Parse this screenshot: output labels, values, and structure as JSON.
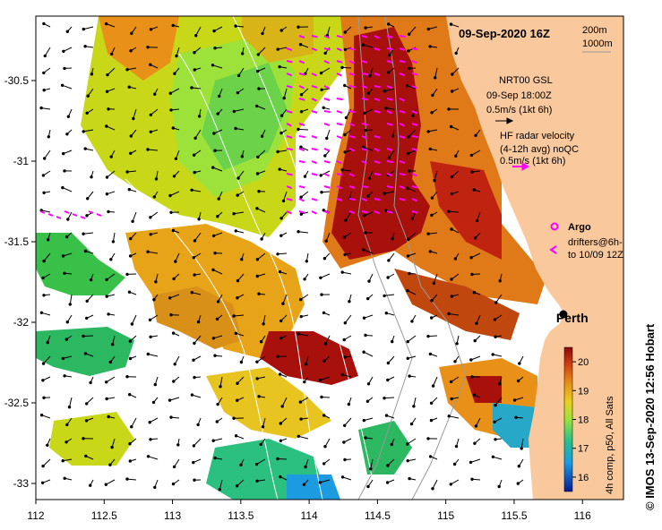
{
  "title": "09-Sep-2020 16Z",
  "isobath_labels": [
    "200m",
    "1000m"
  ],
  "legend_nrt": {
    "line1": "NRT00 GSL",
    "line2": "09-Sep 18:00Z",
    "line3": "0.5m/s (1kt 6h)"
  },
  "legend_hf": {
    "line1": "HF radar velocity",
    "line2": "(4-12h avg) noQC",
    "line3": "0.5m/s (1kt 6h)"
  },
  "legend_argo": "Argo",
  "legend_drifters": {
    "line1": "drifters@6h-",
    "line2": "to 10/09 12Z"
  },
  "city_label": "Perth",
  "colorbar": {
    "label": "4h comp, p50, All Sats",
    "ticks": [
      "20",
      "19",
      "18",
      "17",
      "16"
    ],
    "range": [
      15.5,
      20.5
    ]
  },
  "credit": "©  IMOS 13-Sep-2020 12:56 Hobart",
  "map": {
    "lon_ticks": [
      "112",
      "112.5",
      "113",
      "113.5",
      "114",
      "114.5",
      "115",
      "115.5",
      "116"
    ],
    "lat_ticks": [
      "-30.5",
      "-31",
      "-31.5",
      "-32",
      "-32.5",
      "-33"
    ],
    "lon_range": [
      112,
      116.3
    ],
    "lat_range": [
      -33.1,
      -30.1
    ],
    "city_position": {
      "lon": 115.86,
      "lat": -31.95
    }
  },
  "colors": {
    "land": "#f9c89d",
    "arrow_magenta": "#ff00ff",
    "sst_low": "#00008b",
    "sst_high": "#a80000"
  }
}
